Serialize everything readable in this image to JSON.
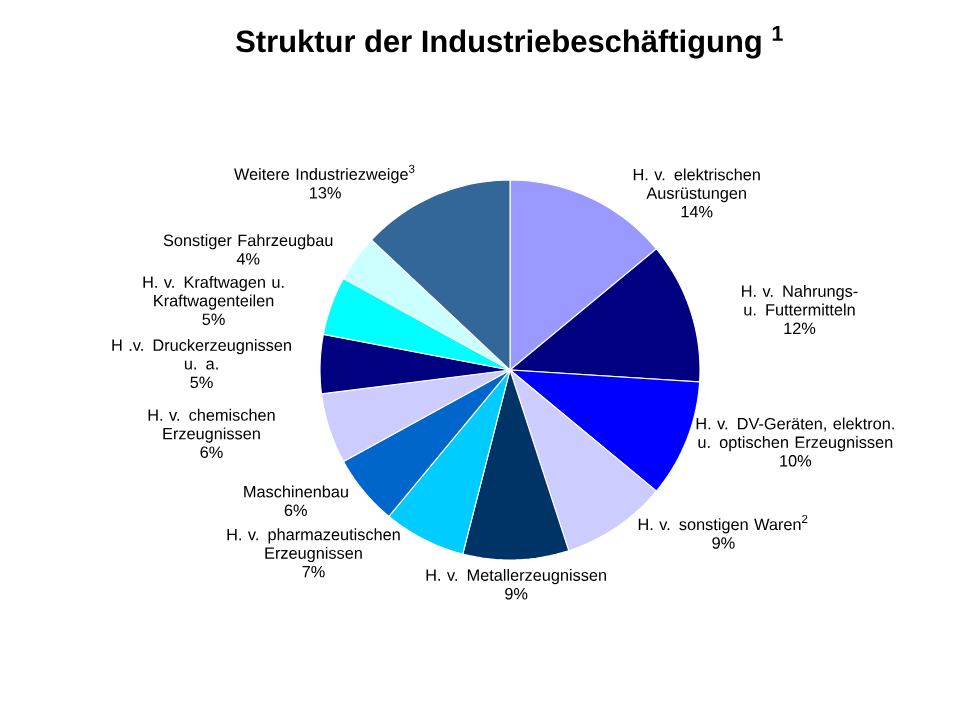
{
  "chart_data": {
    "type": "pie",
    "title": "Struktur der Industriebeschäftigung $^{1}$",
    "categories": [
      "H. v. elektrischen Ausrüstungen",
      "H. v. Nahrungs- u. Futtermitteln",
      "H. v. DV-Geräten, elektron. u. optischen Erzeugnissen",
      "H. v. sonstigen Waren$^{2}$",
      "H. v. Metallerzeugnissen",
      "H. v. pharmazeutischen Erzeugnissen",
      "Maschinenbau",
      "H. v. chemischen Erzeugnissen",
      "H .v. Druckerzeugnissen u. a.",
      "H. v. Kraftwagen u. Kraftwagenteilen",
      "Sonstiger Fahrzeugbau",
      "Weitere Industriezweige$^{3}$"
    ],
    "values": [
      14,
      12,
      10,
      9,
      9,
      7,
      6,
      6,
      5,
      5,
      4,
      13
    ],
    "value_labels": [
      "14%",
      "12%",
      "10%",
      "9%",
      "9%",
      "7%",
      "6%",
      "6%",
      "5%",
      "5%",
      "4%",
      "13%"
    ],
    "colors": [
      "#9999ff",
      "#000080",
      "#0000ff",
      "#ccccff",
      "#003366",
      "#00ccff",
      "#0066cc",
      "#ccccff",
      "#000080",
      "#00ffff",
      "#ccffff",
      "#336699"
    ]
  }
}
